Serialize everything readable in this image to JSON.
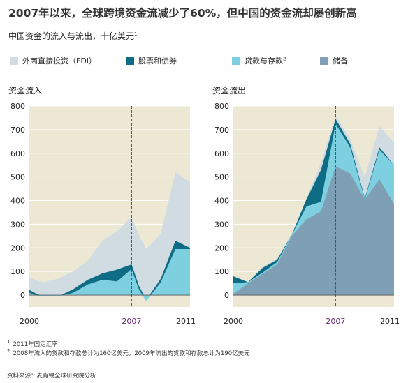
{
  "title": "2007年以来，全球跨境资金流减少了60%，但中国的资金流却屡创新高",
  "subtitle": "中国资金的流入与流出，十亿美元",
  "subtitle_sup": "1",
  "legend": [
    {
      "label": "外商直接投资（FDI）",
      "sup": "",
      "color": "#d1dbe2"
    },
    {
      "label": "股票和债券",
      "sup": "",
      "color": "#0e6d85"
    },
    {
      "label": "贷款与存款",
      "sup": "2",
      "color": "#7ecfe0"
    },
    {
      "label": "储备",
      "sup": "",
      "color": "#7f9fb4"
    }
  ],
  "colors": {
    "plot_bg": "#ece8d3",
    "grid": "#ffffff",
    "marker_line": "#6b2a78",
    "axis_text": "#222222",
    "marker_text": "#6b2a78"
  },
  "footnotes": [
    {
      "mark": "1",
      "text": "2011年固定汇率"
    },
    {
      "mark": "2",
      "text": "2008年流入的贷款和存款总计为160亿美元，2009年流出的贷款和存款总计为190亿美元"
    }
  ],
  "source": "资料来源：麦肯锡全球研究院分析",
  "chart_data": [
    {
      "type": "area",
      "title": "资金流入",
      "x_range": [
        2000,
        2011
      ],
      "x_tick_labels": [
        {
          "value": 2000,
          "label": "2000"
        },
        {
          "value": 2007,
          "label": "2007"
        },
        {
          "value": 2011,
          "label": "2011"
        }
      ],
      "highlight_x": 2007,
      "ylim": [
        -50,
        800
      ],
      "yticks": [
        0,
        100,
        200,
        300,
        400,
        500,
        600,
        700,
        800
      ],
      "x": [
        2000,
        2000.5,
        2001,
        2002,
        2003,
        2004,
        2005,
        2006,
        2007,
        2007.5,
        2008,
        2009,
        2010,
        2011
      ],
      "stacking": "cumulative top edges, drawn back to front",
      "series": [
        {
          "name": "外商直接投资（FDI）",
          "color": "#d1dbe2",
          "top": [
            75,
            62,
            55,
            70,
            100,
            145,
            230,
            270,
            330,
            255,
            195,
            260,
            520,
            478
          ]
        },
        {
          "name": "股票和债券",
          "color": "#0e6d85",
          "top": [
            22,
            5,
            -5,
            -5,
            25,
            65,
            92,
            108,
            130,
            40,
            -20,
            70,
            230,
            200
          ]
        },
        {
          "name": "贷款与存款",
          "color": "#7ecfe0",
          "top": [
            10,
            -2,
            -5,
            -5,
            10,
            45,
            65,
            58,
            110,
            25,
            -25,
            55,
            195,
            195
          ]
        }
      ]
    },
    {
      "type": "area",
      "title": "资金流出",
      "x_range": [
        2000,
        2011
      ],
      "x_tick_labels": [
        {
          "value": 2000,
          "label": "2000"
        },
        {
          "value": 2007,
          "label": "2007"
        },
        {
          "value": 2011,
          "label": "2011"
        }
      ],
      "highlight_x": 2007,
      "ylim": [
        -50,
        800
      ],
      "yticks": [
        0,
        100,
        200,
        300,
        400,
        500,
        600,
        700,
        800
      ],
      "x": [
        2000,
        2001,
        2002,
        2003,
        2004,
        2005,
        2006,
        2007,
        2008,
        2009,
        2010,
        2011
      ],
      "stacking": "cumulative top edges, drawn back to front",
      "series": [
        {
          "name": "外商直接投资（FDI）",
          "color": "#d1dbe2",
          "top": [
            80,
            55,
            120,
            155,
            260,
            410,
            560,
            760,
            660,
            500,
            715,
            645
          ]
        },
        {
          "name": "股票和债券",
          "color": "#0e6d85",
          "top": [
            80,
            55,
            115,
            150,
            255,
            405,
            530,
            745,
            640,
            410,
            625,
            550
          ]
        },
        {
          "name": "贷款与存款",
          "color": "#7ecfe0",
          "top": [
            50,
            55,
            95,
            140,
            255,
            375,
            395,
            725,
            625,
            405,
            615,
            550
          ]
        },
        {
          "name": "储备",
          "color": "#7f9fb4",
          "top": [
            5,
            50,
            90,
            130,
            250,
            320,
            355,
            545,
            515,
            405,
            490,
            385
          ]
        }
      ]
    }
  ]
}
